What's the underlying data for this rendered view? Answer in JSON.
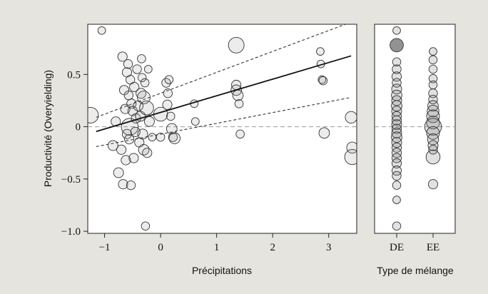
{
  "chart_data": [
    {
      "type": "scatter",
      "title": "",
      "xlabel": "Précipitations",
      "ylabel": "Productivité (Overyielding)",
      "xlim": [
        -1.3,
        3.5
      ],
      "ylim": [
        -1.02,
        0.98
      ],
      "x_ticks": [
        -1,
        0,
        1,
        2,
        3
      ],
      "x_tick_labels": [
        "−1",
        "0",
        "1",
        "2",
        "3"
      ],
      "y_ticks": [
        -1.0,
        -0.5,
        0,
        0.5
      ],
      "y_tick_labels": [
        "−1.0",
        "−0.5",
        "0",
        "0.5"
      ],
      "grid": false,
      "reference_line_y": 0,
      "regression": {
        "intercept": 0.137,
        "slope": 0.159
      },
      "confidence_band": {
        "lower": [
          [
            -1.15,
            -0.19
          ],
          [
            3.4,
            0.28
          ]
        ],
        "upper": [
          [
            -1.15,
            0.09
          ],
          [
            3.4,
            1.0
          ]
        ]
      },
      "points": [
        {
          "x": -1.25,
          "y": 0.11,
          "s": 1.0
        },
        {
          "x": -1.05,
          "y": 0.92,
          "s": 0.3
        },
        {
          "x": -0.85,
          "y": -0.18,
          "s": 0.5
        },
        {
          "x": -0.8,
          "y": 0.05,
          "s": 0.45
        },
        {
          "x": -0.75,
          "y": -0.44,
          "s": 0.5
        },
        {
          "x": -0.7,
          "y": -0.22,
          "s": 0.45
        },
        {
          "x": -0.68,
          "y": 0.67,
          "s": 0.45
        },
        {
          "x": -0.67,
          "y": -0.55,
          "s": 0.45
        },
        {
          "x": -0.65,
          "y": 0.35,
          "s": 0.45
        },
        {
          "x": -0.63,
          "y": 0.17,
          "s": 0.45
        },
        {
          "x": -0.62,
          "y": -0.32,
          "s": 0.45
        },
        {
          "x": -0.6,
          "y": 0.52,
          "s": 0.45
        },
        {
          "x": -0.6,
          "y": -0.07,
          "s": 0.45
        },
        {
          "x": -0.58,
          "y": 0.6,
          "s": 0.4
        },
        {
          "x": -0.57,
          "y": 0.3,
          "s": 0.4
        },
        {
          "x": -0.56,
          "y": -0.12,
          "s": 0.45
        },
        {
          "x": -0.55,
          "y": 0.0,
          "s": 1.1
        },
        {
          "x": -0.54,
          "y": 0.45,
          "s": 0.4
        },
        {
          "x": -0.53,
          "y": -0.56,
          "s": 0.4
        },
        {
          "x": -0.52,
          "y": 0.22,
          "s": 0.45
        },
        {
          "x": -0.5,
          "y": 0.15,
          "s": 0.45
        },
        {
          "x": -0.48,
          "y": -0.3,
          "s": 0.45
        },
        {
          "x": -0.47,
          "y": 0.38,
          "s": 0.45
        },
        {
          "x": -0.45,
          "y": -0.05,
          "s": 0.45
        },
        {
          "x": -0.44,
          "y": 0.08,
          "s": 0.45
        },
        {
          "x": -0.42,
          "y": 0.55,
          "s": 0.4
        },
        {
          "x": -0.4,
          "y": 0.2,
          "s": 0.5
        },
        {
          "x": -0.38,
          "y": -0.15,
          "s": 0.45
        },
        {
          "x": -0.36,
          "y": 0.1,
          "s": 0.5
        },
        {
          "x": -0.35,
          "y": 0.32,
          "s": 0.5
        },
        {
          "x": -0.34,
          "y": 0.65,
          "s": 0.35
        },
        {
          "x": -0.33,
          "y": 0.47,
          "s": 0.35
        },
        {
          "x": -0.32,
          "y": -0.07,
          "s": 0.5
        },
        {
          "x": -0.3,
          "y": 0.28,
          "s": 0.75
        },
        {
          "x": -0.3,
          "y": -0.22,
          "s": 0.55
        },
        {
          "x": -0.28,
          "y": 0.42,
          "s": 0.35
        },
        {
          "x": -0.27,
          "y": -0.95,
          "s": 0.35
        },
        {
          "x": -0.25,
          "y": 0.18,
          "s": 0.85
        },
        {
          "x": -0.24,
          "y": -0.25,
          "s": 0.45
        },
        {
          "x": -0.22,
          "y": 0.55,
          "s": 0.3
        },
        {
          "x": -0.2,
          "y": 0.05,
          "s": 0.5
        },
        {
          "x": -0.15,
          "y": -0.1,
          "s": 0.3
        },
        {
          "x": 0.0,
          "y": 0.12,
          "s": 0.85
        },
        {
          "x": 0.0,
          "y": -0.1,
          "s": 0.35
        },
        {
          "x": 0.1,
          "y": 0.42,
          "s": 0.4
        },
        {
          "x": 0.12,
          "y": 0.21,
          "s": 0.45
        },
        {
          "x": 0.13,
          "y": 0.32,
          "s": 0.4
        },
        {
          "x": 0.15,
          "y": 0.45,
          "s": 0.35
        },
        {
          "x": 0.18,
          "y": 0.1,
          "s": 0.35
        },
        {
          "x": 0.2,
          "y": -0.02,
          "s": 0.55
        },
        {
          "x": 0.22,
          "y": -0.1,
          "s": 0.4
        },
        {
          "x": 0.25,
          "y": -0.11,
          "s": 0.6
        },
        {
          "x": 0.6,
          "y": 0.22,
          "s": 0.3
        },
        {
          "x": 0.62,
          "y": 0.05,
          "s": 0.3
        },
        {
          "x": 1.35,
          "y": 0.78,
          "s": 1.0
        },
        {
          "x": 1.35,
          "y": 0.4,
          "s": 0.45
        },
        {
          "x": 1.35,
          "y": 0.35,
          "s": 0.55
        },
        {
          "x": 1.38,
          "y": 0.3,
          "s": 0.55
        },
        {
          "x": 1.4,
          "y": 0.22,
          "s": 0.35
        },
        {
          "x": 1.42,
          "y": -0.07,
          "s": 0.35
        },
        {
          "x": 2.85,
          "y": 0.72,
          "s": 0.3
        },
        {
          "x": 2.86,
          "y": 0.6,
          "s": 0.3
        },
        {
          "x": 2.88,
          "y": 0.45,
          "s": 0.3
        },
        {
          "x": 2.9,
          "y": 0.44,
          "s": 0.35
        },
        {
          "x": 2.92,
          "y": -0.06,
          "s": 0.55
        },
        {
          "x": 3.4,
          "y": 0.09,
          "s": 0.65
        },
        {
          "x": 3.42,
          "y": -0.2,
          "s": 0.6
        },
        {
          "x": 3.42,
          "y": -0.29,
          "s": 0.95
        }
      ]
    },
    {
      "type": "scatter",
      "xlabel": "Type de mélange",
      "ylabel": "",
      "categories": [
        "DE",
        "EE"
      ],
      "ylim": [
        -1.02,
        0.98
      ],
      "reference_line_y": 0,
      "groups": [
        {
          "category": "DE",
          "points": [
            {
              "y": 0.92,
              "s": 0.3
            },
            {
              "y": 0.78,
              "s": 0.8,
              "filled": true
            },
            {
              "y": 0.62,
              "s": 0.35
            },
            {
              "y": 0.55,
              "s": 0.4
            },
            {
              "y": 0.48,
              "s": 0.45
            },
            {
              "y": 0.42,
              "s": 0.4
            },
            {
              "y": 0.36,
              "s": 0.5
            },
            {
              "y": 0.3,
              "s": 0.55
            },
            {
              "y": 0.25,
              "s": 0.5
            },
            {
              "y": 0.2,
              "s": 0.55
            },
            {
              "y": 0.15,
              "s": 0.5
            },
            {
              "y": 0.1,
              "s": 0.45
            },
            {
              "y": 0.06,
              "s": 0.45
            },
            {
              "y": 0.02,
              "s": 0.5
            },
            {
              "y": -0.02,
              "s": 0.45
            },
            {
              "y": -0.06,
              "s": 0.5
            },
            {
              "y": -0.1,
              "s": 0.55
            },
            {
              "y": -0.15,
              "s": 0.5
            },
            {
              "y": -0.2,
              "s": 0.45
            },
            {
              "y": -0.25,
              "s": 0.45
            },
            {
              "y": -0.3,
              "s": 0.45
            },
            {
              "y": -0.35,
              "s": 0.45
            },
            {
              "y": -0.42,
              "s": 0.45
            },
            {
              "y": -0.47,
              "s": 0.4
            },
            {
              "y": -0.56,
              "s": 0.35
            },
            {
              "y": -0.7,
              "s": 0.3
            },
            {
              "y": -0.95,
              "s": 0.35
            }
          ]
        },
        {
          "category": "EE",
          "points": [
            {
              "y": 0.72,
              "s": 0.3
            },
            {
              "y": 0.64,
              "s": 0.35
            },
            {
              "y": 0.55,
              "s": 0.35
            },
            {
              "y": 0.46,
              "s": 0.35
            },
            {
              "y": 0.4,
              "s": 0.35
            },
            {
              "y": 0.32,
              "s": 0.4
            },
            {
              "y": 0.26,
              "s": 0.4
            },
            {
              "y": 0.2,
              "s": 0.55
            },
            {
              "y": 0.15,
              "s": 0.65
            },
            {
              "y": 0.1,
              "s": 0.75
            },
            {
              "y": 0.04,
              "s": 0.75
            },
            {
              "y": 0.0,
              "s": 1.1
            },
            {
              "y": -0.06,
              "s": 0.75
            },
            {
              "y": -0.12,
              "s": 0.6
            },
            {
              "y": -0.18,
              "s": 0.5
            },
            {
              "y": -0.22,
              "s": 0.4
            },
            {
              "y": -0.29,
              "s": 0.85
            },
            {
              "y": -0.55,
              "s": 0.45
            }
          ]
        }
      ]
    }
  ]
}
